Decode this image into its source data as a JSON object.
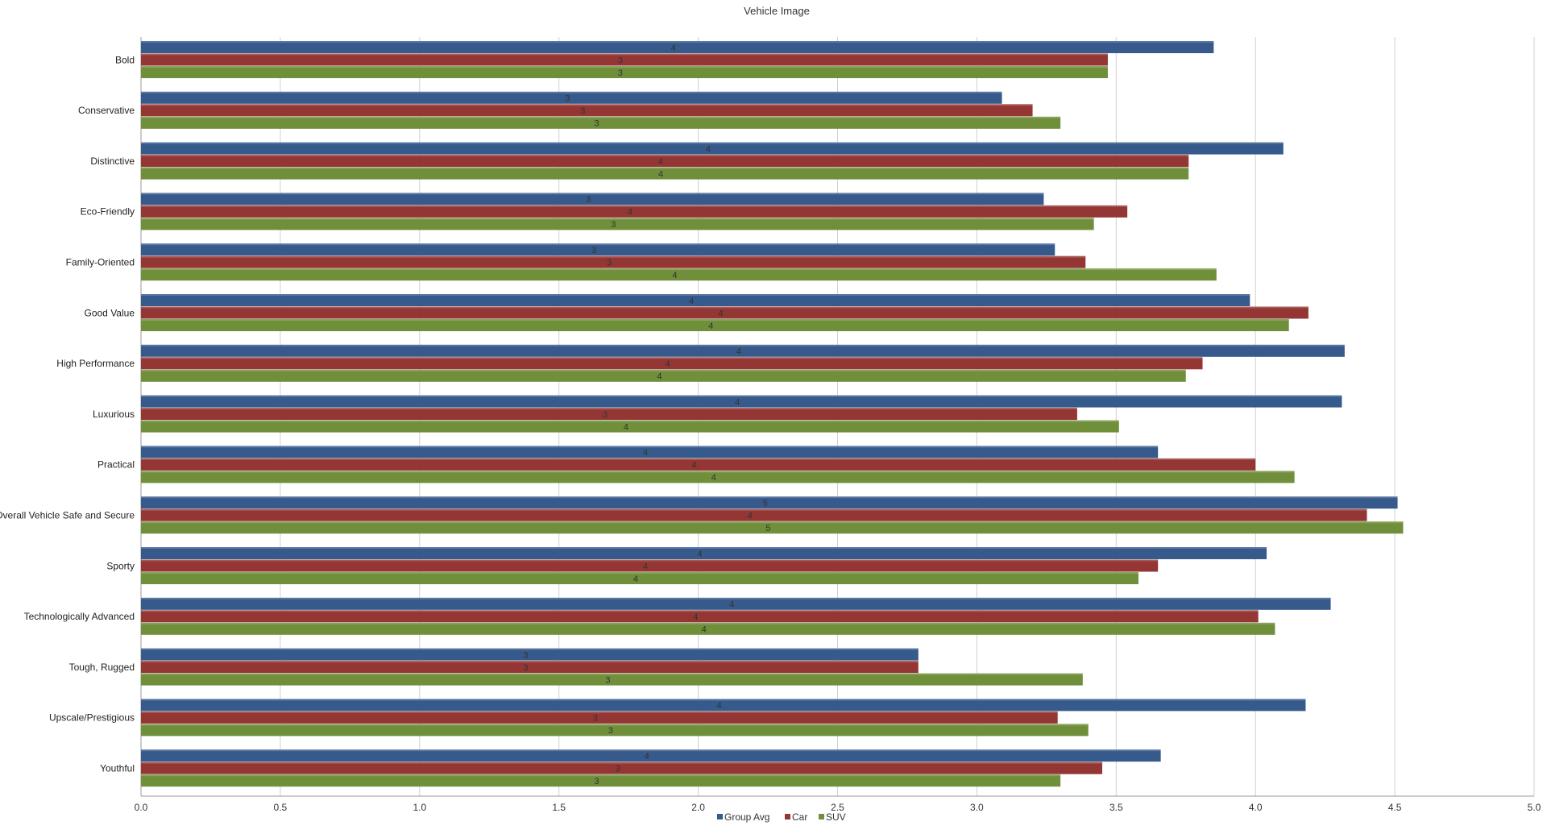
{
  "chart_data": {
    "type": "bar",
    "orientation": "horizontal",
    "title": "Vehicle Image",
    "xlim": [
      0,
      5
    ],
    "x_ticks": [
      "0.0",
      "0.5",
      "1.0",
      "1.5",
      "2.0",
      "2.5",
      "3.0",
      "3.5",
      "4.0",
      "4.5",
      "5.0"
    ],
    "grid": true,
    "legend_position": "bottom-center",
    "categories": [
      "Bold",
      "Conservative",
      "Distinctive",
      "Eco-Friendly",
      "Family-Oriented",
      "Good Value",
      "High Performance",
      "Luxurious",
      "Practical",
      "Overall Vehicle Safe and Secure",
      "Sporty",
      "Technologically Advanced",
      "Tough, Rugged",
      "Upscale/Prestigious",
      "Youthful"
    ],
    "series": [
      {
        "name": "Group Avg",
        "color": "#365a8c",
        "values": [
          3.85,
          3.09,
          4.1,
          3.24,
          3.28,
          3.98,
          4.32,
          4.31,
          3.65,
          4.51,
          4.04,
          4.27,
          2.79,
          4.18,
          3.66
        ],
        "labels": [
          "4",
          "3",
          "4",
          "3",
          "3",
          "4",
          "4",
          "4",
          "4",
          "5",
          "4",
          "4",
          "3",
          "4",
          "4"
        ]
      },
      {
        "name": "Car",
        "color": "#943634",
        "values": [
          3.47,
          3.2,
          3.76,
          3.54,
          3.39,
          4.19,
          3.81,
          3.36,
          4.0,
          4.4,
          3.65,
          4.01,
          2.79,
          3.29,
          3.45
        ],
        "labels": [
          "3",
          "3",
          "4",
          "4",
          "3",
          "4",
          "4",
          "3",
          "4",
          "4",
          "4",
          "4",
          "3",
          "3",
          "3"
        ]
      },
      {
        "name": "SUV",
        "color": "#6f8f3b",
        "values": [
          3.47,
          3.3,
          3.76,
          3.42,
          3.86,
          4.12,
          3.75,
          3.51,
          4.14,
          4.53,
          3.58,
          4.07,
          3.38,
          3.4,
          3.3
        ],
        "labels": [
          "3",
          "3",
          "4",
          "3",
          "4",
          "4",
          "4",
          "4",
          "4",
          "5",
          "4",
          "4",
          "3",
          "3",
          "3"
        ]
      }
    ]
  }
}
